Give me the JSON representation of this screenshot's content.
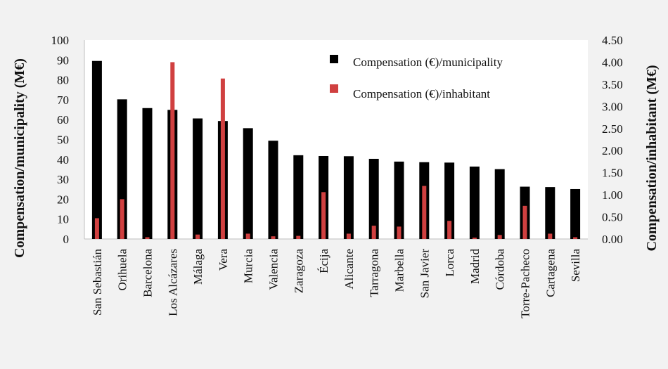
{
  "chart_data": {
    "type": "bar",
    "categories": [
      "San Sebastián",
      "Orihuela",
      "Barcelona",
      "Los Alcázares",
      "Málaga",
      "Vera",
      "Murcia",
      "Valencia",
      "Zaragoza",
      "Écija",
      "Alicante",
      "Tarragona",
      "Marbella",
      "San Javier",
      "Lorca",
      "Madrid",
      "Córdoba",
      "Torre-Pacheco",
      "Cartagena",
      "Sevilla"
    ],
    "series": [
      {
        "name": "Compensation (€)/municipality",
        "axis": "left",
        "color": "#000000",
        "values": [
          89.5,
          70.2,
          65.8,
          64.9,
          60.6,
          59.3,
          55.7,
          49.4,
          42.1,
          41.7,
          41.6,
          40.3,
          38.9,
          38.6,
          38.4,
          36.4,
          35.1,
          26.3,
          26.1,
          25.1
        ]
      },
      {
        "name": "Compensation (€)/inhabitant",
        "axis": "right",
        "color": "#d04040",
        "values": [
          0.47,
          0.9,
          0.04,
          4.0,
          0.1,
          3.63,
          0.12,
          0.06,
          0.07,
          1.06,
          0.12,
          0.3,
          0.28,
          1.2,
          0.41,
          0.03,
          0.09,
          0.75,
          0.12,
          0.04
        ]
      }
    ],
    "ylabel": "Compensation/municipality (M€)",
    "ylabel_right": "Compensation/inhabitant (M€)",
    "ylim": [
      0,
      100
    ],
    "ylim_right": [
      0,
      4.5
    ],
    "yticks": [
      "0",
      "10",
      "20",
      "30",
      "40",
      "50",
      "60",
      "70",
      "80",
      "90",
      "100"
    ],
    "yticks_right": [
      "0.00",
      "0.50",
      "1.00",
      "1.50",
      "2.00",
      "2.50",
      "3.00",
      "3.50",
      "4.00",
      "4.50"
    ],
    "grid": false,
    "legend_position": "top-right"
  }
}
